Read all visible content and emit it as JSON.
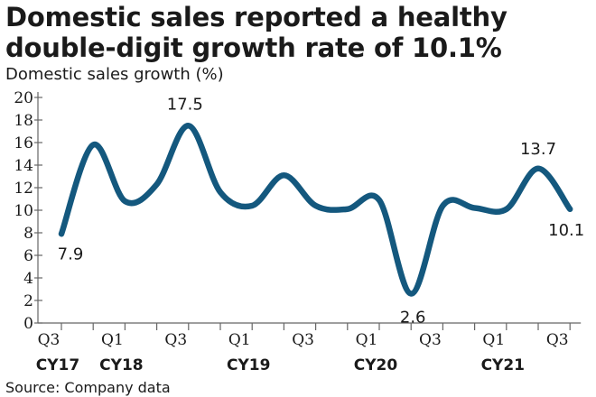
{
  "chart_data": {
    "type": "line",
    "title": "Domestic sales reported a healthy double-digit growth rate of 10.1%",
    "ylabel": "Domestic sales growth (%)",
    "source": "Source: Company data",
    "ylim": [
      0,
      20
    ],
    "yticks": [
      "0",
      "2",
      "4",
      "6",
      "8",
      "10",
      "12",
      "14",
      "16",
      "18",
      "20"
    ],
    "xticks": [
      "Q3",
      "Q1",
      "Q3",
      "Q1",
      "Q3",
      "Q1",
      "Q3",
      "Q1",
      "Q3"
    ],
    "years": [
      "CY17",
      "CY18",
      "CY19",
      "CY20",
      "CY21"
    ],
    "color": "#14587e",
    "series": [
      {
        "x": [
          "CY17 Q3",
          "CY17 Q4",
          "CY18 Q1",
          "CY18 Q2",
          "CY18 Q3",
          "CY18 Q4",
          "CY19 Q1",
          "CY19 Q2",
          "CY19 Q3",
          "CY19 Q4",
          "CY20 Q1",
          "CY20 Q2",
          "CY20 Q3",
          "CY20 Q4",
          "CY21 Q1",
          "CY21 Q2",
          "CY21 Q3"
        ],
        "values": [
          7.9,
          15.8,
          10.8,
          12.3,
          17.5,
          11.6,
          10.4,
          13.1,
          10.4,
          10.1,
          10.9,
          2.6,
          10.4,
          10.2,
          10.1,
          13.7,
          10.1
        ]
      }
    ],
    "data_labels": [
      {
        "text": "7.9",
        "index": 0
      },
      {
        "text": "17.5",
        "index": 4
      },
      {
        "text": "2.6",
        "index": 11
      },
      {
        "text": "13.7",
        "index": 15
      },
      {
        "text": "10.1",
        "index": 16
      }
    ]
  }
}
